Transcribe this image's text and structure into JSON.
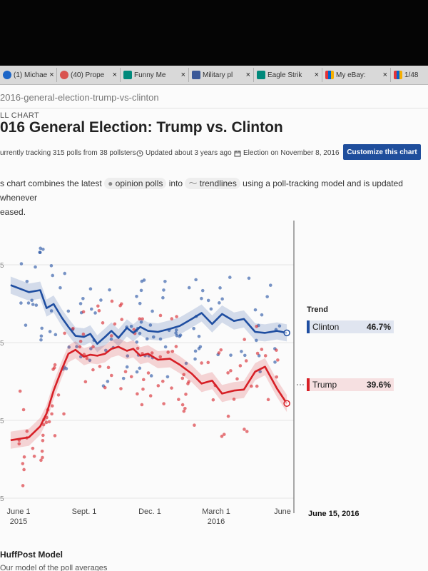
{
  "browser": {
    "tabs": [
      {
        "label": "(1) Michae",
        "favicon_color": "#1d66c7",
        "icon": "facebook-favicon"
      },
      {
        "label": "(40) Prope",
        "favicon_color": "#d9534f",
        "icon": "t-favicon"
      },
      {
        "label": "Funny Me",
        "favicon_color": "#00897b",
        "icon": "bing-favicon"
      },
      {
        "label": "Military pl",
        "favicon_color": "#3b5998",
        "icon": "pinterest-favicon"
      },
      {
        "label": "Eagle Strik",
        "favicon_color": "#00897b",
        "icon": "bing-favicon"
      },
      {
        "label": "My eBay: ",
        "favicon_color": "#e53238",
        "icon": "ebay-favicon"
      },
      {
        "label": "1/48",
        "favicon_color": "#e53238",
        "icon": "ebay-favicon"
      }
    ],
    "close_glyph": "×"
  },
  "page": {
    "url": "2016-general-election-trump-vs-clinton",
    "kicker": "LL CHART",
    "title": "016 General Election: Trump vs. Clinton",
    "tracking": "urrently tracking 315 polls from 38 pollsters",
    "updated": "Updated about 3 years ago",
    "election": "Election on November 8, 2016",
    "customize_button": "Customize this chart",
    "desc_part1": "s chart combines the latest",
    "desc_pill1": "opinion polls",
    "desc_into": "into",
    "desc_pill2": "trendlines",
    "desc_part2": "using a poll-tracking model and is updated whenever",
    "desc_line2": "eased.",
    "huffpost_heading": "HuffPost Model",
    "huffpost_sub": "Our model of the poll averages"
  },
  "chart_data": {
    "type": "line",
    "title": "",
    "trend_heading": "Trend",
    "x_tick_labels": [
      {
        "main": "June 1",
        "sub": "2015"
      },
      {
        "main": "Sept. 1",
        "sub": ""
      },
      {
        "main": "Dec. 1",
        "sub": ""
      },
      {
        "main": "March 1",
        "sub": "2016"
      },
      {
        "main": "June",
        "sub": ""
      }
    ],
    "y_tick_labels": [
      "5",
      "5",
      "5",
      "5"
    ],
    "cursor_date": "June 15, 2016",
    "xlim": [
      "2015-05-15",
      "2016-06-25"
    ],
    "ylim": [
      30,
      58
    ],
    "series": [
      {
        "name": "Clinton",
        "color": "#1f4ea1",
        "current": "46.7%",
        "x": [
          "2015-05-20",
          "2015-06-15",
          "2015-07-01",
          "2015-07-10",
          "2015-07-20",
          "2015-08-01",
          "2015-08-10",
          "2015-08-20",
          "2015-09-01",
          "2015-09-10",
          "2015-09-20",
          "2015-10-01",
          "2015-10-10",
          "2015-10-20",
          "2015-11-01",
          "2015-11-10",
          "2015-11-20",
          "2015-12-01",
          "2015-12-15",
          "2016-01-01",
          "2016-01-15",
          "2016-02-01",
          "2016-02-15",
          "2016-03-01",
          "2016-03-15",
          "2016-04-01",
          "2016-04-15",
          "2016-05-01",
          "2016-05-15",
          "2016-06-01",
          "2016-06-15"
        ],
        "y": [
          51.5,
          50.8,
          51.0,
          49.2,
          49.6,
          48.2,
          47.3,
          46.4,
          46.3,
          46.6,
          45.6,
          46.3,
          46.9,
          46.2,
          47.2,
          46.7,
          47.3,
          46.9,
          46.8,
          47.1,
          47.4,
          48.1,
          48.7,
          47.6,
          48.6,
          47.9,
          48.1,
          46.8,
          46.7,
          46.9,
          46.7
        ]
      },
      {
        "name": "Trump",
        "color": "#d71f26",
        "current": "39.6%",
        "x": [
          "2015-05-20",
          "2015-06-15",
          "2015-07-01",
          "2015-07-10",
          "2015-07-20",
          "2015-08-01",
          "2015-08-10",
          "2015-08-20",
          "2015-09-01",
          "2015-09-10",
          "2015-09-20",
          "2015-10-01",
          "2015-10-10",
          "2015-10-20",
          "2015-11-01",
          "2015-11-10",
          "2015-11-20",
          "2015-12-01",
          "2015-12-15",
          "2016-01-01",
          "2016-01-15",
          "2016-02-01",
          "2016-02-15",
          "2016-03-01",
          "2016-03-15",
          "2016-04-01",
          "2016-04-15",
          "2016-05-01",
          "2016-05-15",
          "2016-06-01",
          "2016-06-15"
        ],
        "y": [
          35.9,
          36.2,
          37.3,
          38.6,
          40.9,
          43.1,
          44.6,
          45.0,
          44.3,
          44.5,
          44.4,
          44.6,
          45.1,
          45.3,
          44.9,
          45.1,
          44.4,
          44.6,
          44.0,
          44.1,
          43.5,
          42.6,
          41.6,
          41.9,
          40.6,
          40.9,
          41.0,
          42.8,
          43.3,
          41.1,
          39.6
        ]
      }
    ]
  }
}
